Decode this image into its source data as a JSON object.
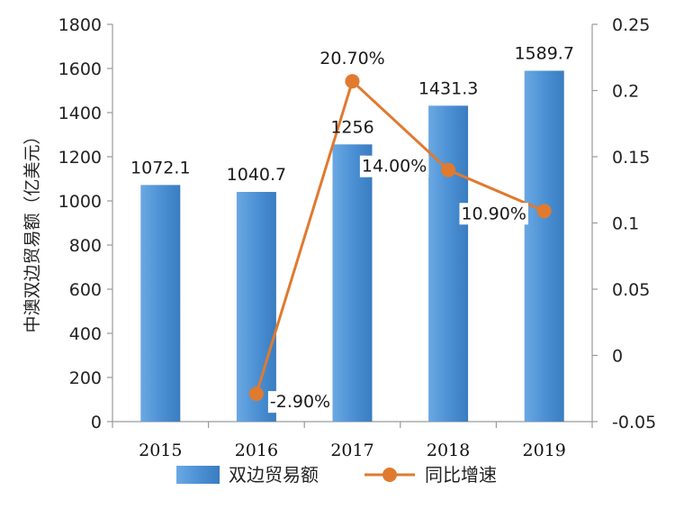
{
  "chart_data": {
    "type": "bar",
    "categories": [
      "2015",
      "2016",
      "2017",
      "2018",
      "2019"
    ],
    "series": [
      {
        "name": "双边贸易额",
        "kind": "bar",
        "axis": "left",
        "values": [
          1072.1,
          1040.7,
          1256,
          1431.3,
          1589.7
        ],
        "labels": [
          "1072.1",
          "1040.7",
          "1256",
          "1431.3",
          "1589.7"
        ],
        "color": "#4a8fd3"
      },
      {
        "name": "同比增速",
        "kind": "line",
        "axis": "right",
        "values": [
          null,
          -0.029,
          0.207,
          0.14,
          0.109
        ],
        "labels": [
          "",
          "-2.90%",
          "20.70%",
          "14.00%",
          "10.90%"
        ],
        "color": "#e07a2f"
      }
    ],
    "ylabel": "中澳双边贸易额（亿美元）",
    "y_left": {
      "lim": [
        0,
        1800
      ],
      "ticks": [
        "0",
        "200",
        "400",
        "600",
        "800",
        "1000",
        "1200",
        "1400",
        "1600",
        "1800"
      ]
    },
    "y_right": {
      "lim": [
        -0.05,
        0.25
      ],
      "ticks": [
        "-0.05",
        "0",
        "0.05",
        "0.1",
        "0.15",
        "0.2",
        "0.25"
      ]
    },
    "legend": {
      "position": "bottom",
      "items": [
        "双边贸易额",
        "同比增速"
      ]
    },
    "grid": false
  }
}
